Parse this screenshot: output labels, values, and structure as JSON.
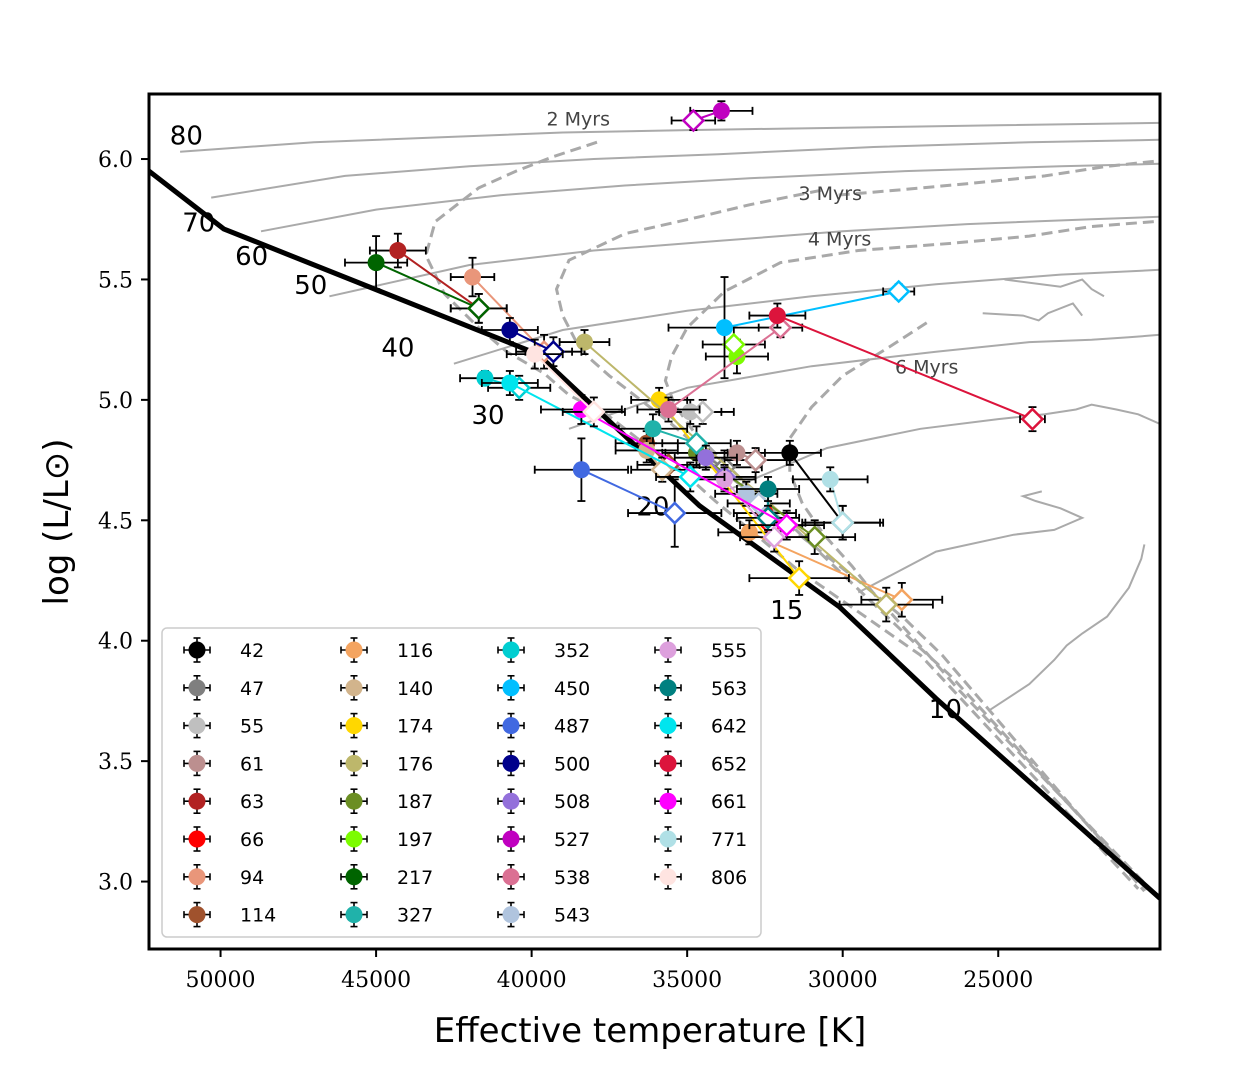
{
  "chart_data": {
    "type": "scatter",
    "xlabel": "Effective temperature [K]",
    "ylabel": "log (L/L⊙)",
    "xlim": [
      52300,
      19800
    ],
    "ylim": [
      2.72,
      6.27
    ],
    "x_inverted": true,
    "xticks": [
      50000,
      45000,
      40000,
      35000,
      30000,
      25000
    ],
    "xtick_labels": [
      "50000",
      "45000",
      "40000",
      "35000",
      "30000",
      "25000"
    ],
    "yticks": [
      3.0,
      3.5,
      4.0,
      4.5,
      5.0,
      5.5,
      6.0
    ],
    "ytick_labels": [
      "3.0",
      "3.5",
      "4.0",
      "4.5",
      "5.0",
      "5.5",
      "6.0"
    ],
    "legend_position": "lower-left",
    "zams": {
      "name": "ZAMS",
      "x": [
        52300,
        49900,
        39800,
        34600,
        30100,
        27000,
        19800
      ],
      "y": [
        5.95,
        5.71,
        5.19,
        4.56,
        4.14,
        3.76,
        2.93
      ]
    },
    "mass_labels": [
      {
        "text": "80",
        "x": 51100,
        "y": 6.06
      },
      {
        "text": "70",
        "x": 50700,
        "y": 5.7
      },
      {
        "text": "60",
        "x": 49000,
        "y": 5.56
      },
      {
        "text": "50",
        "x": 47100,
        "y": 5.44
      },
      {
        "text": "40",
        "x": 44300,
        "y": 5.18
      },
      {
        "text": "30",
        "x": 41400,
        "y": 4.9
      },
      {
        "text": "20",
        "x": 36100,
        "y": 4.52
      },
      {
        "text": "15",
        "x": 31800,
        "y": 4.09
      },
      {
        "text": "10",
        "x": 26700,
        "y": 3.68
      }
    ],
    "isochrone_labels": [
      {
        "text": "2 Myrs",
        "x": 38500,
        "y": 6.14
      },
      {
        "text": "3 Myrs",
        "x": 30400,
        "y": 5.83
      },
      {
        "text": "4 Myrs",
        "x": 30100,
        "y": 5.64
      },
      {
        "text": "6 Myrs",
        "x": 27300,
        "y": 5.11
      }
    ],
    "tracks": [
      {
        "x": [
          51300,
          47000,
          43000,
          39000,
          35000,
          30000,
          25000,
          19800
        ],
        "y": [
          6.03,
          6.07,
          6.09,
          6.11,
          6.12,
          6.13,
          6.14,
          6.15
        ]
      },
      {
        "x": [
          50300,
          46000,
          42000,
          38000,
          34000,
          29000,
          24000,
          19800
        ],
        "y": [
          5.84,
          5.93,
          5.97,
          6.0,
          6.02,
          6.05,
          6.07,
          6.08
        ]
      },
      {
        "x": [
          48700,
          45000,
          41000,
          37000,
          33000,
          28000,
          23000,
          19800
        ],
        "y": [
          5.7,
          5.79,
          5.85,
          5.89,
          5.92,
          5.95,
          5.97,
          5.98
        ]
      },
      {
        "x": [
          46500,
          42000,
          38000,
          34000,
          30000,
          26000,
          22000,
          19800
        ],
        "y": [
          5.43,
          5.56,
          5.62,
          5.66,
          5.7,
          5.73,
          5.75,
          5.76
        ]
      },
      {
        "x": [
          42500,
          39000,
          35000,
          31000,
          27000,
          23000,
          19800
        ],
        "y": [
          5.15,
          5.29,
          5.37,
          5.43,
          5.48,
          5.52,
          5.54
        ]
      },
      {
        "x": [
          38800,
          35000,
          31000,
          27000,
          24000,
          22000,
          20800,
          19800
        ],
        "y": [
          4.88,
          5.05,
          5.14,
          5.2,
          5.24,
          5.25,
          5.26,
          5.27
        ]
      },
      {
        "x": [
          33800,
          30500,
          27500,
          25000,
          23500,
          22500,
          22000,
          21200,
          20500,
          19800
        ],
        "y": [
          4.62,
          4.8,
          4.88,
          4.92,
          4.94,
          4.96,
          4.98,
          4.96,
          4.94,
          4.9
        ]
      },
      {
        "x": [
          29500,
          27000,
          24500,
          23200,
          22300,
          23000,
          23800,
          24200,
          23600
        ],
        "y": [
          4.2,
          4.37,
          4.44,
          4.46,
          4.51,
          4.55,
          4.58,
          4.6,
          4.62
        ]
      },
      {
        "x": [
          25300,
          24000,
          23200,
          22800,
          22300,
          21500,
          20800,
          20400,
          20300
        ],
        "y": [
          3.71,
          3.82,
          3.92,
          3.98,
          4.03,
          4.1,
          4.22,
          4.34,
          4.4
        ]
      },
      {
        "x": [
          24800,
          23000,
          22300,
          22000,
          21600
        ],
        "y": [
          5.5,
          5.47,
          5.5,
          5.46,
          5.43
        ]
      },
      {
        "x": [
          25500,
          24200,
          23700,
          23400,
          22600,
          22300
        ],
        "y": [
          5.36,
          5.35,
          5.33,
          5.36,
          5.4,
          5.35
        ]
      }
    ],
    "isochrones": [
      {
        "name": "2 Myrs",
        "x": [
          37900,
          39300,
          40500,
          41700,
          43100,
          43400,
          42800,
          41700,
          40800,
          39600,
          38800,
          37600,
          36600,
          35300,
          34100,
          32600,
          31500,
          29500,
          27500,
          20500
        ],
        "y": [
          6.07,
          6.01,
          5.95,
          5.88,
          5.74,
          5.6,
          5.44,
          5.3,
          5.2,
          5.11,
          5.02,
          4.94,
          4.84,
          4.72,
          4.58,
          4.42,
          4.3,
          4.12,
          3.94,
          2.97
        ]
      },
      {
        "name": "3 Myrs",
        "x": [
          30700,
          33000,
          34600,
          37000,
          38800,
          39200,
          39000,
          38600,
          38200,
          37500,
          36700,
          35600,
          34500,
          33600,
          32500,
          31200,
          29600,
          28000,
          26800,
          20300
        ],
        "y": [
          5.87,
          5.81,
          5.76,
          5.69,
          5.58,
          5.46,
          5.35,
          5.25,
          5.18,
          5.1,
          5.02,
          4.91,
          4.79,
          4.68,
          4.56,
          4.42,
          4.26,
          4.09,
          3.94,
          2.96
        ]
      },
      {
        "name": "3 Myrs upper",
        "x": [
          20000,
          21500,
          23500,
          25800,
          28300,
          30200
        ],
        "y": [
          5.99,
          5.97,
          5.93,
          5.9,
          5.87,
          5.85
        ]
      },
      {
        "name": "4 Myrs",
        "x": [
          20000,
          22000,
          24000,
          26500,
          29500,
          32000,
          33800,
          35000,
          35500,
          35700,
          35400,
          34800,
          33800,
          32700,
          31500,
          30200,
          28900,
          27600,
          26500,
          20100
        ],
        "y": [
          5.74,
          5.72,
          5.68,
          5.65,
          5.62,
          5.57,
          5.45,
          5.3,
          5.18,
          5.08,
          4.98,
          4.87,
          4.74,
          4.6,
          4.46,
          4.3,
          4.14,
          3.98,
          3.85,
          2.95
        ]
      },
      {
        "name": "6 Myrs",
        "x": [
          27300,
          28500,
          30000,
          31000,
          31700,
          31700,
          31300,
          30600,
          29700,
          28900,
          28000,
          27100,
          26300,
          19900
        ],
        "y": [
          5.32,
          5.22,
          5.1,
          4.97,
          4.84,
          4.7,
          4.57,
          4.44,
          4.31,
          4.18,
          4.05,
          3.92,
          3.8,
          2.94
        ]
      }
    ],
    "stars": [
      {
        "name": "42",
        "color": "#000000",
        "x1": 31700,
        "y1": 4.78,
        "xe1": 1000,
        "ye1": 0.05,
        "x2": 30000,
        "y2": 4.49,
        "xe2": 1200,
        "ye2": 0.07
      },
      {
        "name": "47",
        "color": "#7f7f7f",
        "x1": 34700,
        "y1": 4.78,
        "xe1": 1100,
        "ye1": 0.06,
        "x2": 33800,
        "y2": 4.72,
        "xe2": 1200,
        "ye2": 0.07
      },
      {
        "name": "55",
        "color": "#bfbfbf",
        "x1": 34900,
        "y1": 4.95,
        "xe1": 1000,
        "ye1": 0.05,
        "x2": 34500,
        "y2": 4.95,
        "xe2": 1000,
        "ye2": 0.05
      },
      {
        "name": "61",
        "color": "#bc8f8f",
        "x1": 33400,
        "y1": 4.78,
        "xe1": 900,
        "ye1": 0.05,
        "x2": 32800,
        "y2": 4.75,
        "xe2": 1000,
        "ye2": 0.05
      },
      {
        "name": "63",
        "color": "#b22222",
        "x1": 44300,
        "y1": 5.62,
        "xe1": 900,
        "ye1": 0.07,
        "x2": 41700,
        "y2": 5.38,
        "xe2": 900,
        "ye2": 0.06
      },
      {
        "name": "66",
        "color": "#ff0000",
        "x1": 32500,
        "y1": 4.53,
        "xe1": 1000,
        "ye1": 0.05,
        "x2": 32300,
        "y2": 4.48,
        "xe2": 1000,
        "ye2": 0.05
      },
      {
        "name": "94",
        "color": "#e9967a",
        "x1": 41900,
        "y1": 5.51,
        "xe1": 700,
        "ye1": 0.08,
        "x2": 39600,
        "y2": 5.2,
        "xe2": 900,
        "ye2": 0.07
      },
      {
        "name": "114",
        "color": "#a0522d",
        "x1": 36300,
        "y1": 4.82,
        "xe1": 1000,
        "ye1": 0.05,
        "x2": 35600,
        "y2": 4.73,
        "xe2": 1000,
        "ye2": 0.05
      },
      {
        "name": "116",
        "color": "#f4a460",
        "x1": 33000,
        "y1": 4.45,
        "xe1": 1000,
        "ye1": 0.05,
        "x2": 28100,
        "y2": 4.17,
        "xe2": 1300,
        "ye2": 0.07
      },
      {
        "name": "140",
        "color": "#d2b48c",
        "x1": 36300,
        "y1": 4.79,
        "xe1": 1000,
        "ye1": 0.05,
        "x2": 35800,
        "y2": 4.71,
        "xe2": 1000,
        "ye2": 0.05
      },
      {
        "name": "174",
        "color": "#ffd700",
        "x1": 35900,
        "y1": 5.0,
        "xe1": 900,
        "ye1": 0.05,
        "x2": 31400,
        "y2": 4.26,
        "xe2": 1600,
        "ye2": 0.07
      },
      {
        "name": "176",
        "color": "#bdb76b",
        "x1": 38300,
        "y1": 5.24,
        "xe1": 800,
        "ye1": 0.05,
        "x2": 28600,
        "y2": 4.15,
        "xe2": 1500,
        "ye2": 0.07
      },
      {
        "name": "187",
        "color": "#6b8e23",
        "x1": 34700,
        "y1": 4.78,
        "xe1": 1000,
        "ye1": 0.05,
        "x2": 30900,
        "y2": 4.43,
        "xe2": 1300,
        "ye2": 0.07
      },
      {
        "name": "197",
        "color": "#7cfc00",
        "x1": 33400,
        "y1": 5.18,
        "xe1": 1000,
        "ye1": 0.07,
        "x2": 33500,
        "y2": 5.23,
        "xe2": 1000,
        "ye2": 0.07
      },
      {
        "name": "217",
        "color": "#006400",
        "x1": 45000,
        "y1": 5.57,
        "xe1": 1000,
        "ye1": 0.11,
        "x2": 41700,
        "y2": 5.38,
        "xe2": 900,
        "ye2": 0.06
      },
      {
        "name": "327",
        "color": "#20b2aa",
        "x1": 36100,
        "y1": 4.88,
        "xe1": 1100,
        "ye1": 0.06,
        "x2": 34700,
        "y2": 4.82,
        "xe2": 1100,
        "ye2": 0.07
      },
      {
        "name": "352",
        "color": "#00ced1",
        "x1": 41500,
        "y1": 5.09,
        "xe1": 800,
        "ye1": 0.03,
        "x2": 40400,
        "y2": 5.05,
        "xe2": 1000,
        "ye2": 0.05
      },
      {
        "name": "450",
        "color": "#00bfff",
        "x1": 33800,
        "y1": 5.3,
        "xe1": 1800,
        "ye1": 0.21,
        "x2": 28200,
        "y2": 5.45,
        "xe2": 500,
        "ye2": 0.03
      },
      {
        "name": "487",
        "color": "#4169e1",
        "x1": 38400,
        "y1": 4.71,
        "xe1": 1500,
        "ye1": 0.13,
        "x2": 35400,
        "y2": 4.53,
        "xe2": 1500,
        "ye2": 0.14
      },
      {
        "name": "500",
        "color": "#00008b",
        "x1": 40700,
        "y1": 5.29,
        "xe1": 900,
        "ye1": 0.05,
        "x2": 39300,
        "y2": 5.2,
        "xe2": 900,
        "ye2": 0.06
      },
      {
        "name": "508",
        "color": "#9370db",
        "x1": 34400,
        "y1": 4.76,
        "xe1": 1000,
        "ye1": 0.05,
        "x2": 33800,
        "y2": 4.68,
        "xe2": 1000,
        "ye2": 0.05
      },
      {
        "name": "527",
        "color": "#c000c0",
        "x1": 33900,
        "y1": 6.2,
        "xe1": 1000,
        "ye1": 0.04,
        "x2": 34800,
        "y2": 6.16,
        "xe2": 700,
        "ye2": 0.04
      },
      {
        "name": "538",
        "color": "#db7093",
        "x1": 35600,
        "y1": 4.96,
        "xe1": 1000,
        "ye1": 0.05,
        "x2": 32000,
        "y2": 5.3,
        "xe2": 700,
        "ye2": 0.04
      },
      {
        "name": "543",
        "color": "#b0c4de",
        "x1": 33100,
        "y1": 4.61,
        "xe1": 1000,
        "ye1": 0.05,
        "x2": 32700,
        "y2": 4.57,
        "xe2": 1000,
        "ye2": 0.05
      },
      {
        "name": "555",
        "color": "#dda0dd",
        "x1": 33800,
        "y1": 4.67,
        "xe1": 1000,
        "ye1": 0.05,
        "x2": 32200,
        "y2": 4.43,
        "xe2": 1100,
        "ye2": 0.06
      },
      {
        "name": "563",
        "color": "#008080",
        "x1": 32400,
        "y1": 4.63,
        "xe1": 1000,
        "ye1": 0.05,
        "x2": 32400,
        "y2": 4.51,
        "xe2": 1000,
        "ye2": 0.05
      },
      {
        "name": "642",
        "color": "#00e5ee",
        "x1": 40700,
        "y1": 5.07,
        "xe1": 900,
        "ye1": 0.05,
        "x2": 34900,
        "y2": 4.68,
        "xe2": 1100,
        "ye2": 0.06
      },
      {
        "name": "652",
        "color": "#dc143c",
        "x1": 32100,
        "y1": 5.35,
        "xe1": 900,
        "ye1": 0.05,
        "x2": 23900,
        "y2": 4.92,
        "xe2": 400,
        "ye2": 0.05
      },
      {
        "name": "661",
        "color": "#ff00ff",
        "x1": 38400,
        "y1": 4.96,
        "xe1": 1300,
        "ye1": 0.06,
        "x2": 31800,
        "y2": 4.48,
        "xe2": 1200,
        "ye2": 0.06
      },
      {
        "name": "771",
        "color": "#b0e0e6",
        "x1": 30400,
        "y1": 4.67,
        "xe1": 1200,
        "ye1": 0.05,
        "x2": 30000,
        "y2": 4.49,
        "xe2": 1300,
        "ye2": 0.07
      },
      {
        "name": "806",
        "color": "#ffe4e1",
        "x1": 39900,
        "y1": 5.19,
        "xe1": 900,
        "ye1": 0.06,
        "x2": 38000,
        "y2": 4.95,
        "xe2": 1000,
        "ye2": 0.06
      }
    ],
    "legend": [
      "42",
      "47",
      "55",
      "61",
      "63",
      "66",
      "94",
      "114",
      "116",
      "140",
      "174",
      "176",
      "187",
      "197",
      "217",
      "327",
      "352",
      "450",
      "487",
      "500",
      "508",
      "527",
      "538",
      "543",
      "555",
      "563",
      "642",
      "652",
      "661",
      "771",
      "806"
    ]
  }
}
